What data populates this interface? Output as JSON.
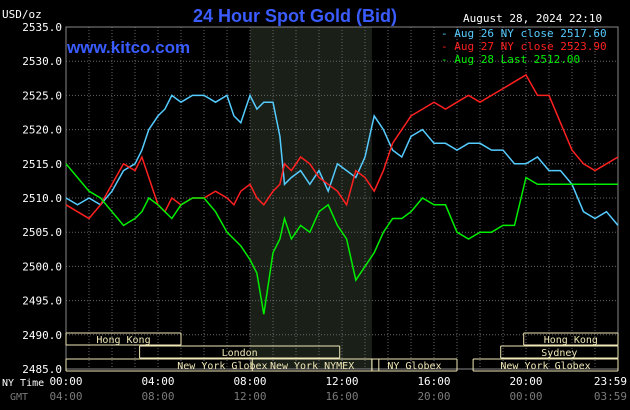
{
  "chart_data": {
    "type": "line",
    "title": "24 Hour Spot Gold (Bid)",
    "brand": "www.kitco.com",
    "timestamp": "August 28, 2024 22:10",
    "ylabel": "USD/oz",
    "ylim": [
      2485,
      2535
    ],
    "y_ticks": [
      "2535.0",
      "2530.0",
      "2525.0",
      "2520.0",
      "2515.0",
      "2510.0",
      "2505.0",
      "2500.0",
      "2495.0",
      "2490.0",
      "2485.0"
    ],
    "xlim": [
      0,
      24
    ],
    "x_ticks_ny": [
      "00:00",
      "04:00",
      "08:00",
      "12:00",
      "16:00",
      "20:00",
      "23:59"
    ],
    "x_ticks_gmt": [
      "04:00",
      "08:00",
      "12:00",
      "16:00",
      "20:00",
      "00:00",
      "03:59"
    ],
    "x_axis_label_ny": "NY Time",
    "x_axis_label_gmt": "GMT",
    "grid": true,
    "legend": "top-right",
    "colors": {
      "aug26": "#55ccff",
      "aug27": "#ff2020",
      "aug28": "#00ee00",
      "highlight": "#1a1f18",
      "grid": "#666666",
      "market_fill": "#efe7b6"
    },
    "series": [
      {
        "name": "Aug 26 NY close 2517.60",
        "key": "aug26",
        "x": [
          0,
          0.5,
          1,
          1.5,
          2,
          2.5,
          3,
          3.3,
          3.6,
          4,
          4.3,
          4.6,
          5,
          5.5,
          6,
          6.5,
          7,
          7.3,
          7.6,
          8,
          8.3,
          8.6,
          9,
          9.3,
          9.5,
          9.8,
          10.2,
          10.6,
          11,
          11.4,
          11.8,
          12.2,
          12.6,
          13,
          13.4,
          13.8,
          14.2,
          14.6,
          15,
          15.5,
          16,
          16.5,
          17,
          17.5,
          18,
          18.5,
          19,
          19.5,
          20,
          20.5,
          21,
          21.5,
          22,
          22.5,
          23,
          23.5,
          24
        ],
        "y": [
          2510,
          2509,
          2510,
          2509,
          2511,
          2514,
          2515,
          2517,
          2520,
          2522,
          2523,
          2525,
          2524,
          2525,
          2525,
          2524,
          2525,
          2522,
          2521,
          2525,
          2523,
          2524,
          2524,
          2519,
          2512,
          2513,
          2514,
          2512,
          2514,
          2511,
          2515,
          2514,
          2513,
          2516,
          2522,
          2520,
          2517,
          2516,
          2519,
          2520,
          2518,
          2518,
          2517,
          2518,
          2518,
          2517,
          2517,
          2515,
          2515,
          2516,
          2514,
          2514,
          2512,
          2508,
          2507,
          2508,
          2506
        ]
      },
      {
        "name": "Aug 27 NY close 2523.90",
        "key": "aug27",
        "x": [
          0,
          0.5,
          1,
          1.5,
          2,
          2.5,
          3,
          3.3,
          3.6,
          4,
          4.3,
          4.6,
          5,
          5.5,
          6,
          6.5,
          7,
          7.3,
          7.6,
          8,
          8.3,
          8.6,
          9,
          9.3,
          9.5,
          9.8,
          10.2,
          10.6,
          11,
          11.4,
          11.8,
          12.2,
          12.6,
          13,
          13.4,
          13.8,
          14.2,
          14.6,
          15,
          15.5,
          16,
          16.5,
          17,
          17.5,
          18,
          18.5,
          19,
          19.5,
          20,
          20.5,
          21,
          21.5,
          22,
          22.5,
          23,
          23.5,
          24
        ],
        "y": [
          2509,
          2508,
          2507,
          2509,
          2512,
          2515,
          2514,
          2516,
          2513,
          2509,
          2508,
          2510,
          2509,
          2510,
          2510,
          2511,
          2510,
          2509,
          2511,
          2512,
          2510,
          2509,
          2511,
          2512,
          2515,
          2514,
          2516,
          2515,
          2513,
          2512,
          2511,
          2509,
          2514,
          2513,
          2511,
          2514,
          2518,
          2520,
          2522,
          2523,
          2524,
          2523,
          2524,
          2525,
          2524,
          2525,
          2526,
          2527,
          2528,
          2525,
          2525,
          2521,
          2517,
          2515,
          2514,
          2515,
          2516
        ]
      },
      {
        "name": "Aug 28 Last 2512.00",
        "key": "aug28",
        "x": [
          0,
          0.5,
          1,
          1.5,
          2,
          2.5,
          3,
          3.3,
          3.6,
          4,
          4.3,
          4.6,
          5,
          5.5,
          6,
          6.5,
          7,
          7.3,
          7.6,
          8,
          8.3,
          8.6,
          9,
          9.3,
          9.5,
          9.8,
          10.2,
          10.6,
          11,
          11.4,
          11.8,
          12.2,
          12.6,
          13,
          13.4,
          13.8,
          14.2,
          14.6,
          15,
          15.5,
          16,
          16.5,
          17,
          17.5,
          18,
          18.5,
          19,
          19.5,
          20,
          20.5,
          21,
          21.5,
          22,
          22.5,
          23,
          23.5,
          24
        ],
        "y": [
          2515,
          2513,
          2511,
          2510,
          2508,
          2506,
          2507,
          2508,
          2510,
          2509,
          2508,
          2507,
          2509,
          2510,
          2510,
          2508,
          2505,
          2504,
          2503,
          2501,
          2499,
          2493,
          2502,
          2504,
          2507,
          2504,
          2506,
          2505,
          2508,
          2509,
          2506,
          2504,
          2498,
          2500,
          2502,
          2505,
          2507,
          2507,
          2508,
          2510,
          2509,
          2509,
          2505,
          2504,
          2505,
          2505,
          2506,
          2506,
          2513,
          2512,
          2512,
          2512,
          2512,
          2512,
          2512,
          2512,
          2512
        ]
      }
    ],
    "highlight_hours": [
      8,
      13.3
    ],
    "markets": [
      {
        "label": "Hong Kong",
        "row": 0,
        "start": 0,
        "end": 5
      },
      {
        "label": "Hong Kong",
        "row": 0,
        "start": 19.9,
        "end": 24
      },
      {
        "label": "London",
        "row": 1,
        "start": 3.2,
        "end": 11.9
      },
      {
        "label": "Sydney",
        "row": 1,
        "start": 18.9,
        "end": 24
      },
      {
        "label": "New York Globex",
        "row": 2,
        "start": 0,
        "end": 13.6
      },
      {
        "label": "New York NYMEX",
        "row": 2,
        "start": 8.1,
        "end": 13.3
      },
      {
        "label": "NY Globex",
        "row": 2,
        "start": 13.3,
        "end": 17
      },
      {
        "label": "New York Globex",
        "row": 2,
        "start": 17.7,
        "end": 24
      }
    ]
  }
}
